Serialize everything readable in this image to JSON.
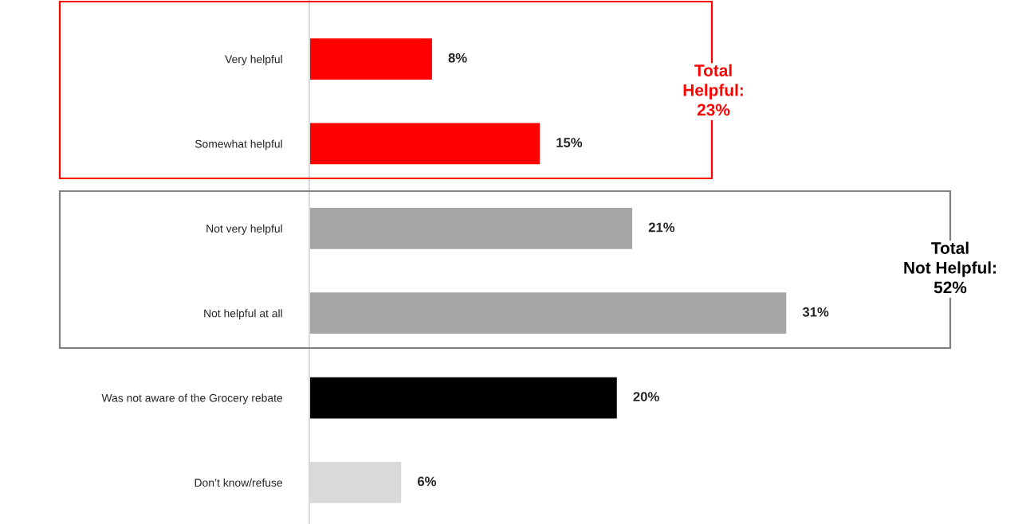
{
  "chart_data": {
    "type": "bar",
    "orientation": "horizontal",
    "categories": [
      "Very helpful",
      "Somewhat helpful",
      "Not very helpful",
      "Not helpful at all",
      "Was not aware of the Grocery rebate",
      "Don’t know/refuse"
    ],
    "values": [
      8,
      15,
      21,
      31,
      20,
      6
    ],
    "colors": [
      "#ff0000",
      "#ff0000",
      "#a6a6a6",
      "#a6a6a6",
      "#000000",
      "#d9d9d9"
    ],
    "value_labels": [
      "8%",
      "15%",
      "21%",
      "31%",
      "20%",
      "6%"
    ],
    "annotations": [
      "Total\nHelpful:\n23%",
      "Total\nNot Helpful:\n52%"
    ]
  }
}
